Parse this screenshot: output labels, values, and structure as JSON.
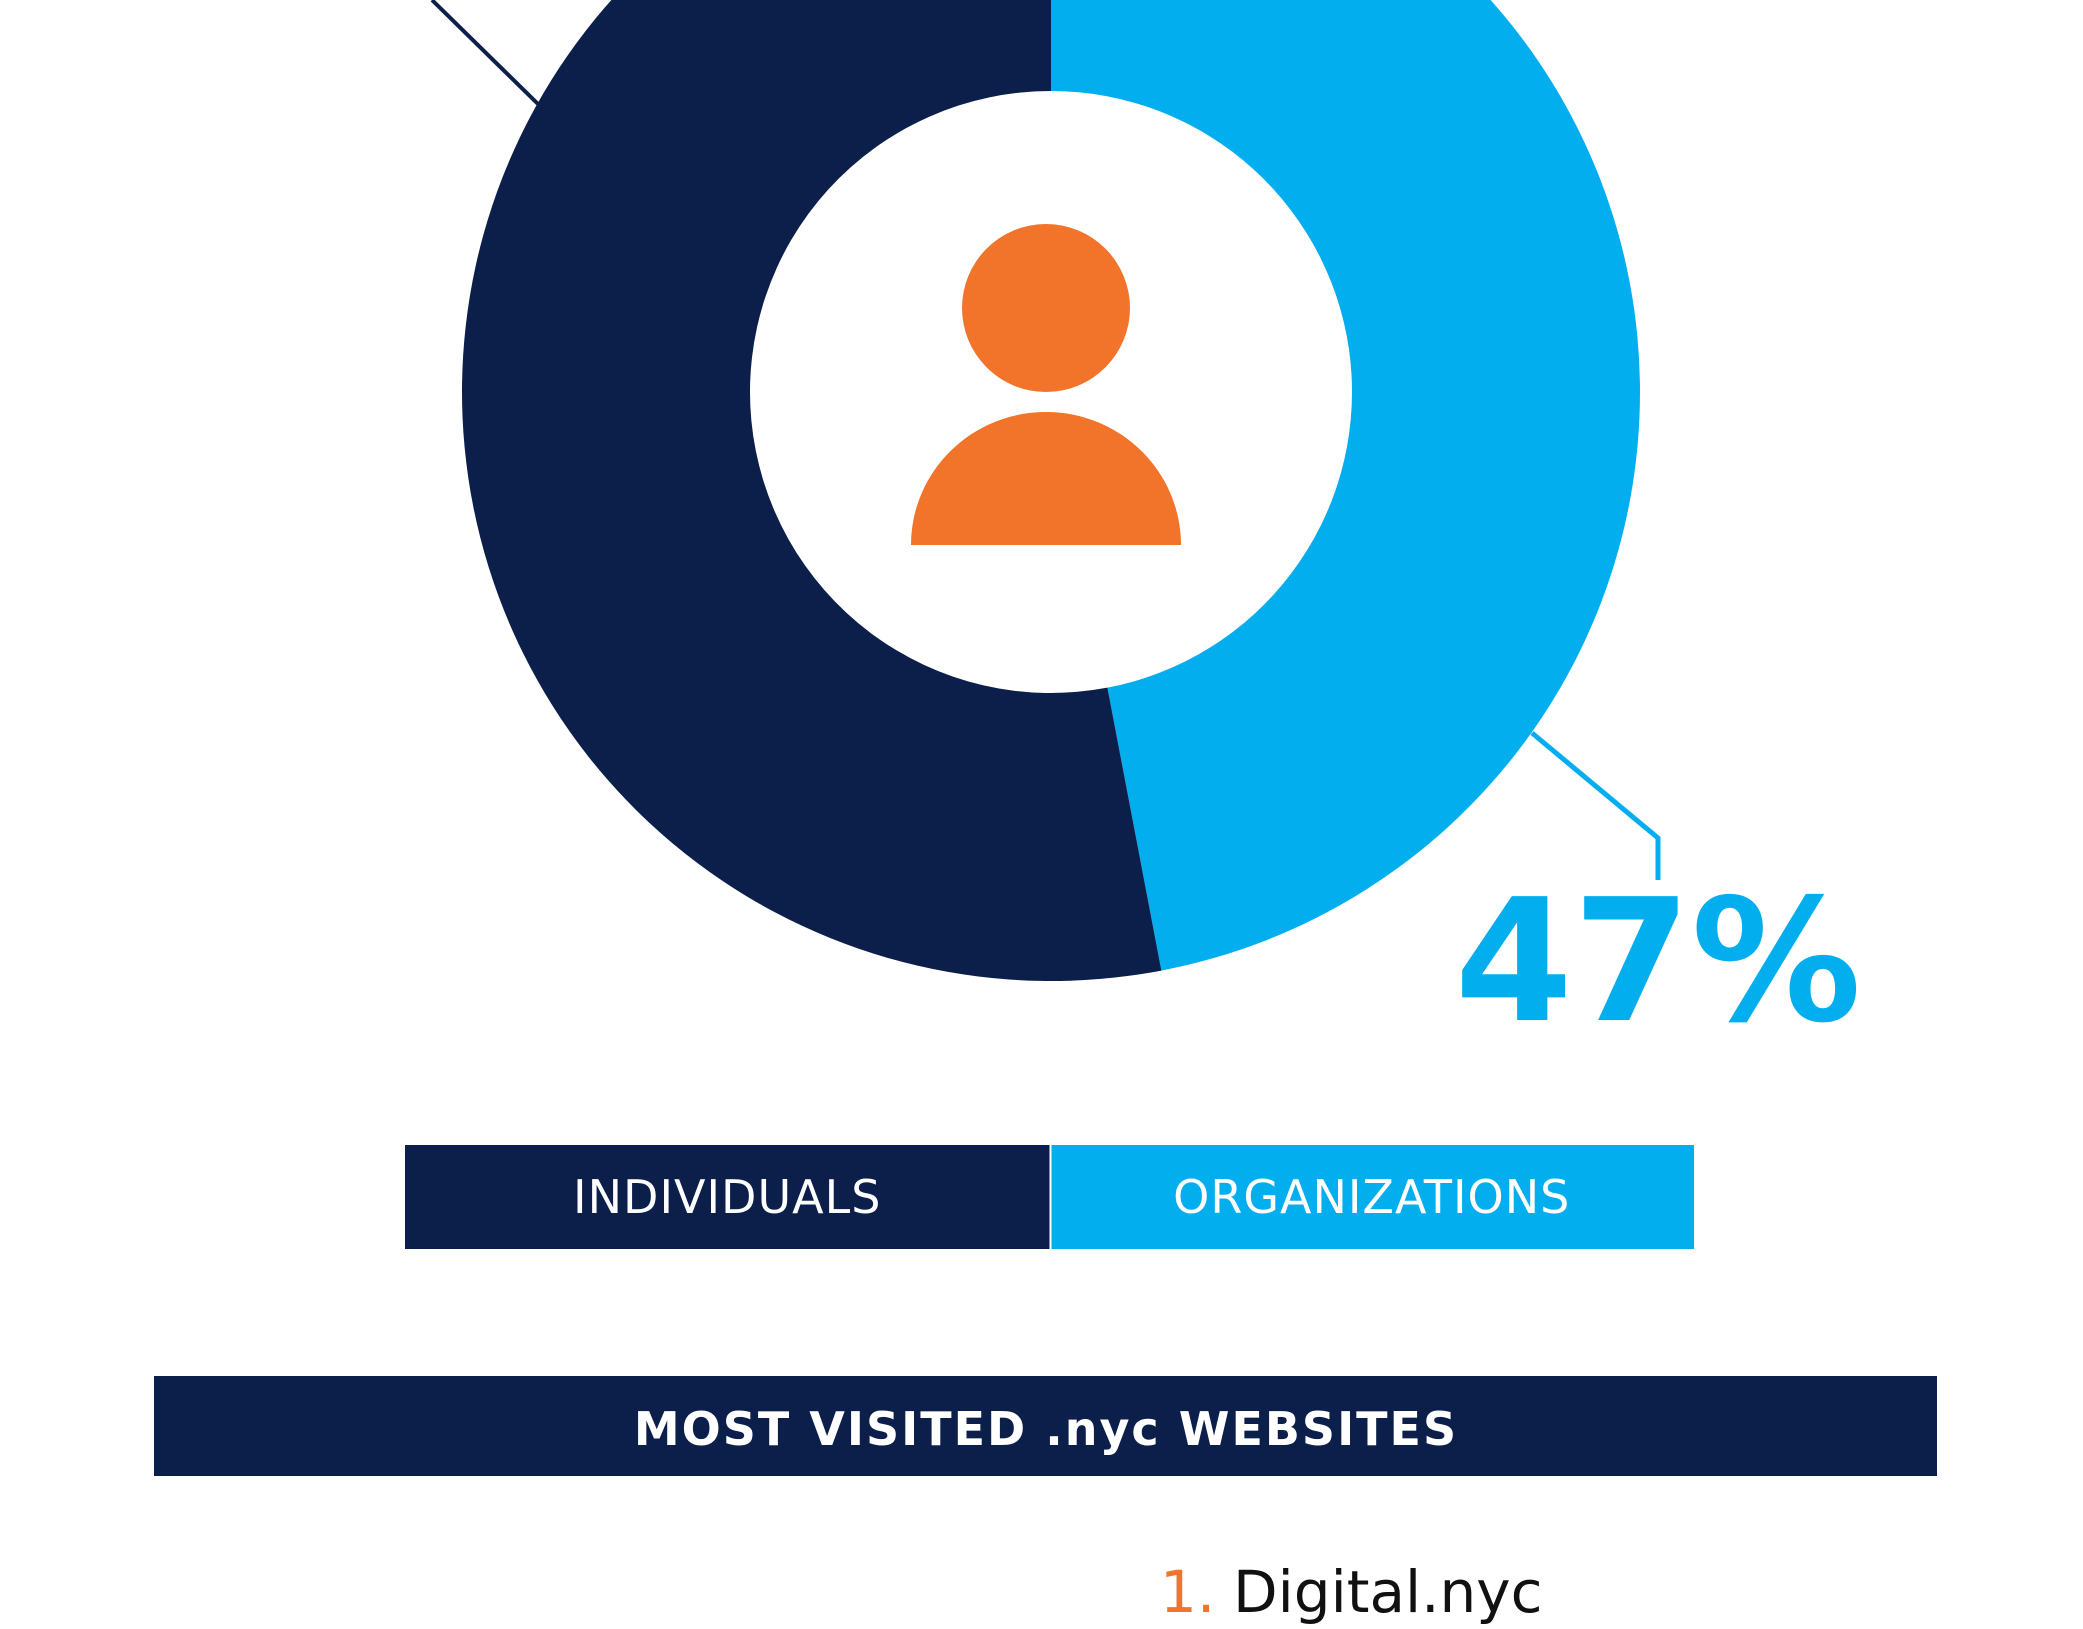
{
  "chart_data": {
    "type": "donut",
    "categories": [
      "INDIVIDUALS",
      "ORGANIZATIONS"
    ],
    "values": [
      53,
      47
    ],
    "value_labels": [
      null,
      "47%"
    ],
    "colors": [
      "#0c1f4a",
      "#03aeef"
    ]
  },
  "section": {
    "title": "MOST VISITED .nyc WEBSITES",
    "items": [
      {
        "rank": "1.",
        "name": "Digital.nyc"
      }
    ]
  }
}
